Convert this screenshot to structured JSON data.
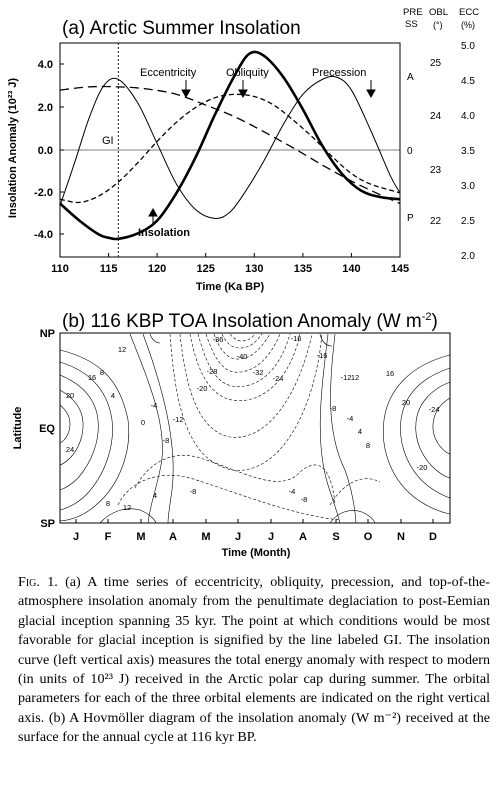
{
  "figure": {
    "panel_a": {
      "title": "(a) Arctic Summer Insolation",
      "ylabel": "Insolation Anomaly (10²³ J)",
      "xlabel": "Time (Ka BP)",
      "y_ticks": [
        "4.0",
        "2.0",
        "0.0",
        "-2.0",
        "-4.0"
      ],
      "x_ticks": [
        "110",
        "115",
        "120",
        "125",
        "130",
        "135",
        "140",
        "145"
      ],
      "right_axes": {
        "pre": {
          "header1": "PRE",
          "header2": "SS",
          "labels": [
            "A",
            "0",
            "P"
          ]
        },
        "obl": {
          "header1": "OBL",
          "header2": "(°)",
          "labels": [
            "25",
            "24",
            "23",
            "22"
          ]
        },
        "ecc": {
          "header1": "ECC",
          "header2": "(%)",
          "labels": [
            "5.0",
            "4.5",
            "4.0",
            "3.5",
            "3.0",
            "2.5",
            "2.0"
          ]
        }
      },
      "annotations": {
        "gi": "GI",
        "eccentricity": "Eccentricity",
        "obliquity": "Obliquity",
        "precession": "Precession",
        "insolation": "Insolation"
      }
    },
    "panel_b": {
      "title_main": "(b) 116 KBP TOA Insolation Anomaly (W m",
      "title_sup": "-2",
      "title_close": ")",
      "ylabel": "Latitude",
      "xlabel": "Time (Month)",
      "y_ticks": [
        "NP",
        "EQ",
        "SP"
      ],
      "months": [
        "J",
        "F",
        "M",
        "A",
        "M",
        "J",
        "J",
        "A",
        "S",
        "O",
        "N",
        "D"
      ],
      "contour_labels": [
        "-36",
        "-40",
        "-32",
        "-28",
        "-24",
        "-20",
        "-16",
        "-12",
        "-8",
        "-4",
        "0",
        "4",
        "8",
        "12",
        "16",
        "20",
        "24",
        "-16",
        "-12",
        "-8",
        "-4",
        "4",
        "8",
        "12",
        "16",
        "20",
        "-24",
        "-20",
        "-4",
        "-8",
        "12",
        "8",
        "4",
        "-8"
      ]
    }
  },
  "caption": {
    "label": "Fig. 1.",
    "text": " (a) A time series of eccentricity, obliquity, precession, and top-of-the-atmosphere insolation anomaly from the penultimate deglaciation to post-Eemian glacial inception spanning 35 kyr. The point at which conditions would be most favorable for glacial inception is signified by the line labeled GI. The insolation curve (left vertical axis) measures the total energy anomaly with respect to modern (in units of 10²³ J) received in the Arctic polar cap during summer. The orbital parameters for each of the three orbital elements are indicated on the right vertical axis. (b) A Hovmöller diagram of the insolation anomaly (W m⁻²) received at the surface for the annual cycle at 116 kyr BP."
  },
  "chart_data": [
    {
      "type": "line",
      "title": "(a) Arctic Summer Insolation",
      "xlabel": "Time (Ka BP)",
      "ylabel": "Insolation Anomaly (10²³ J)",
      "xlim": [
        110,
        145
      ],
      "ylim": [
        -5,
        5
      ],
      "grid": false,
      "reference_lines": {
        "x": 116,
        "y": 0
      },
      "series": [
        {
          "name": "Insolation",
          "style": "thick-solid",
          "x": [
            110,
            112,
            114,
            115,
            116,
            118,
            120,
            122,
            124,
            126,
            128,
            129.5,
            131,
            133,
            135,
            137,
            139,
            141,
            143,
            145
          ],
          "y": [
            -2.5,
            -3.3,
            -3.95,
            -4.1,
            -4.15,
            -3.9,
            -3.3,
            -2.0,
            -0.3,
            1.7,
            3.5,
            4.5,
            4.4,
            3.4,
            1.9,
            0.2,
            -1.1,
            -1.9,
            -2.2,
            -2.3
          ]
        },
        {
          "name": "Eccentricity",
          "style": "long-dash",
          "x": [
            110,
            113,
            116,
            119,
            122,
            125,
            128,
            131,
            134,
            137,
            140,
            143,
            145
          ],
          "y": [
            2.8,
            2.95,
            2.95,
            2.85,
            2.6,
            2.1,
            1.55,
            0.85,
            0.1,
            -0.7,
            -1.45,
            -2.1,
            -2.5
          ]
        },
        {
          "name": "Obliquity",
          "style": "short-dash",
          "x": [
            110,
            112,
            114,
            116,
            118,
            120,
            122,
            124,
            126,
            128,
            130,
            132,
            134,
            136,
            138,
            140,
            142,
            145
          ],
          "y": [
            -2.3,
            -2.45,
            -2.15,
            -1.5,
            -0.6,
            0.4,
            1.3,
            2.0,
            2.45,
            2.6,
            2.5,
            2.1,
            1.4,
            0.6,
            -0.3,
            -1.1,
            -1.6,
            -2.0
          ]
        },
        {
          "name": "Precession",
          "style": "thin-solid",
          "x": [
            110,
            111.5,
            113,
            114.5,
            116,
            118,
            120,
            122,
            124,
            126,
            127.5,
            129,
            131,
            133,
            135,
            137,
            138.5,
            140,
            142,
            144,
            145
          ],
          "y": [
            -2.6,
            -0.6,
            1.5,
            3.0,
            3.3,
            2.2,
            0.3,
            -1.6,
            -2.8,
            -3.2,
            -2.9,
            -2.0,
            -0.5,
            1.2,
            2.6,
            3.3,
            3.4,
            2.8,
            0.9,
            -1.2,
            -2.0
          ]
        }
      ]
    },
    {
      "type": "heatmap",
      "title": "(b) 116 KBP TOA Insolation Anomaly (W m-2)",
      "xlabel": "Time (Month)",
      "ylabel": "Latitude",
      "categories": [
        "J",
        "F",
        "M",
        "A",
        "M",
        "J",
        "J",
        "A",
        "S",
        "O",
        "N",
        "D"
      ],
      "y_categories": [
        "NP",
        "EQ",
        "SP"
      ],
      "contour_levels": [
        -40,
        -36,
        -32,
        -28,
        -24,
        -20,
        -16,
        -12,
        -8,
        -4,
        0,
        4,
        8,
        12,
        16,
        20,
        24
      ],
      "extremes": {
        "min": -40,
        "max": 24
      }
    }
  ]
}
